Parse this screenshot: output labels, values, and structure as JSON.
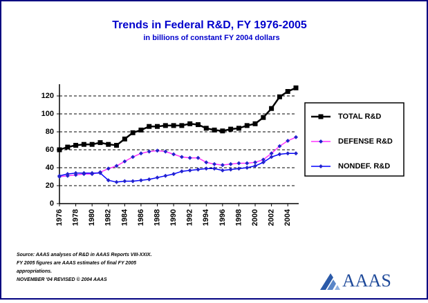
{
  "chart_data": {
    "type": "line",
    "title": "Trends in Federal R&D, FY 1976-2005",
    "subtitle": "in billions of constant FY 2004 dollars",
    "x": [
      1976,
      1977,
      1978,
      1979,
      1980,
      1981,
      1982,
      1983,
      1984,
      1985,
      1986,
      1987,
      1988,
      1989,
      1990,
      1991,
      1992,
      1993,
      1994,
      1995,
      1996,
      1997,
      1998,
      1999,
      2000,
      2001,
      2002,
      2003,
      2004,
      2005
    ],
    "xlim": [
      1976,
      2005
    ],
    "xticks": [
      1976,
      1978,
      1980,
      1982,
      1984,
      1986,
      1988,
      1990,
      1992,
      1994,
      1996,
      1998,
      2000,
      2002,
      2004
    ],
    "ylim": [
      0,
      130
    ],
    "yticks": [
      0,
      20,
      40,
      60,
      80,
      100,
      120
    ],
    "grid": true,
    "legend": "right",
    "series": [
      {
        "name": "TOTAL R&D",
        "color": "#000000",
        "values": [
          60,
          63,
          65,
          66,
          66,
          68,
          66,
          65,
          72,
          79,
          82,
          86,
          86,
          87,
          87,
          87,
          89,
          88,
          84,
          82,
          81,
          83,
          84,
          87,
          89,
          96,
          106,
          119,
          125,
          129
        ]
      },
      {
        "name": "DEFENSE R&D",
        "color": "#ff33ff",
        "values": [
          30,
          31,
          32,
          33,
          33,
          35,
          39,
          42,
          47,
          52,
          56,
          58,
          59,
          58,
          55,
          52,
          51,
          51,
          46,
          44,
          43,
          44,
          45,
          45,
          46,
          49,
          56,
          64,
          70,
          74
        ]
      },
      {
        "name": "NONDEF. R&D",
        "color": "#0000ff",
        "values": [
          31,
          33,
          34,
          34,
          34,
          34,
          26,
          24,
          25,
          25,
          26,
          27,
          29,
          31,
          33,
          36,
          37,
          38,
          39,
          39,
          37,
          38,
          39,
          40,
          42,
          46,
          52,
          55,
          56,
          56
        ]
      }
    ],
    "notes": [
      "Source: AAAS analyses of R&D in AAAS Reports VIII-XXIX.",
      "FY 2005 figures are AAAS estimates of final FY 2005",
      "appropriations.",
      "NOVEMBER '04 REVISED © 2004 AAAS"
    ],
    "logo": "AAAS"
  }
}
